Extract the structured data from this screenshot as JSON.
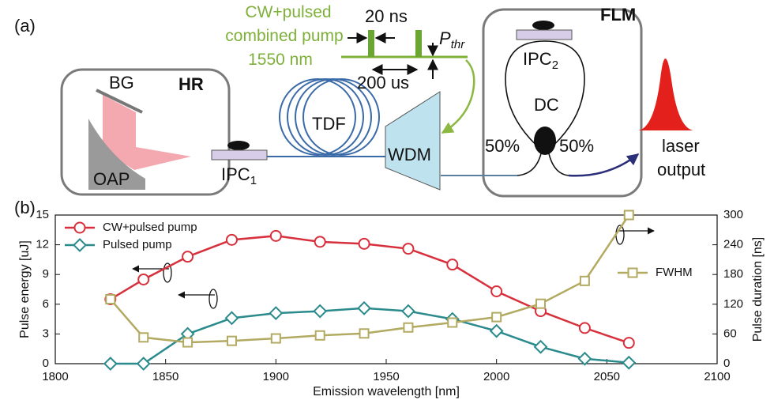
{
  "diagram": {
    "panel_label": "(a)",
    "pump_label": [
      "CW+pulsed",
      "combined pump",
      "1550 nm"
    ],
    "pulse_width": "20 ns",
    "pulse_period": "200 us",
    "threshold": {
      "text": "P",
      "sub": "thr"
    },
    "hr": {
      "title": "HR",
      "grating": "BG",
      "mirror": "OAP"
    },
    "ipc1": {
      "text": "IPC",
      "sub": "1"
    },
    "fiber": "TDF",
    "wdm": "WDM",
    "flm": {
      "title": "FLM",
      "ipc2": {
        "text": "IPC",
        "sub": "2"
      },
      "coupler": "DC",
      "split_left": "50%",
      "split_right": "50%"
    },
    "output": [
      "laser",
      "output"
    ]
  },
  "chart_data": {
    "type": "line",
    "panel_label": "(b)",
    "xlabel": "Emission wavelength [nm]",
    "ylabel": "Pulse energy [uJ]",
    "y2label": "Pulse duration [ns]",
    "x": [
      1825,
      1840,
      1860,
      1880,
      1900,
      1920,
      1940,
      1960,
      1980,
      2000,
      2020,
      2040,
      2060
    ],
    "xlim": [
      1800,
      2100
    ],
    "xticks": [
      1800,
      1850,
      1900,
      1950,
      2000,
      2050,
      2100
    ],
    "ylim": [
      0,
      15
    ],
    "yticks": [
      0,
      3,
      6,
      9,
      12,
      15
    ],
    "y2lim": [
      0,
      300
    ],
    "y2ticks": [
      0,
      60,
      120,
      180,
      240,
      300
    ],
    "legend": "upper left",
    "series": [
      {
        "name": "CW+pulsed pump",
        "color": "#d7303c",
        "marker": "circle",
        "values": [
          6.5,
          8.5,
          10.8,
          12.5,
          12.9,
          12.3,
          12.1,
          11.6,
          10.0,
          7.3,
          5.3,
          3.6,
          2.1
        ]
      },
      {
        "name": "Pulsed pump",
        "color": "#2a8a8c",
        "marker": "diamond",
        "values": [
          0,
          0,
          3.0,
          4.6,
          5.1,
          5.3,
          5.6,
          5.3,
          4.5,
          3.3,
          1.7,
          0.5,
          0.1
        ]
      },
      {
        "name": "FWHM",
        "color": "#b3aa62",
        "marker": "square",
        "axis": "y2",
        "values": [
          130,
          53,
          43,
          46,
          51,
          57,
          61,
          73,
          83,
          94,
          121,
          167,
          300
        ]
      }
    ]
  }
}
